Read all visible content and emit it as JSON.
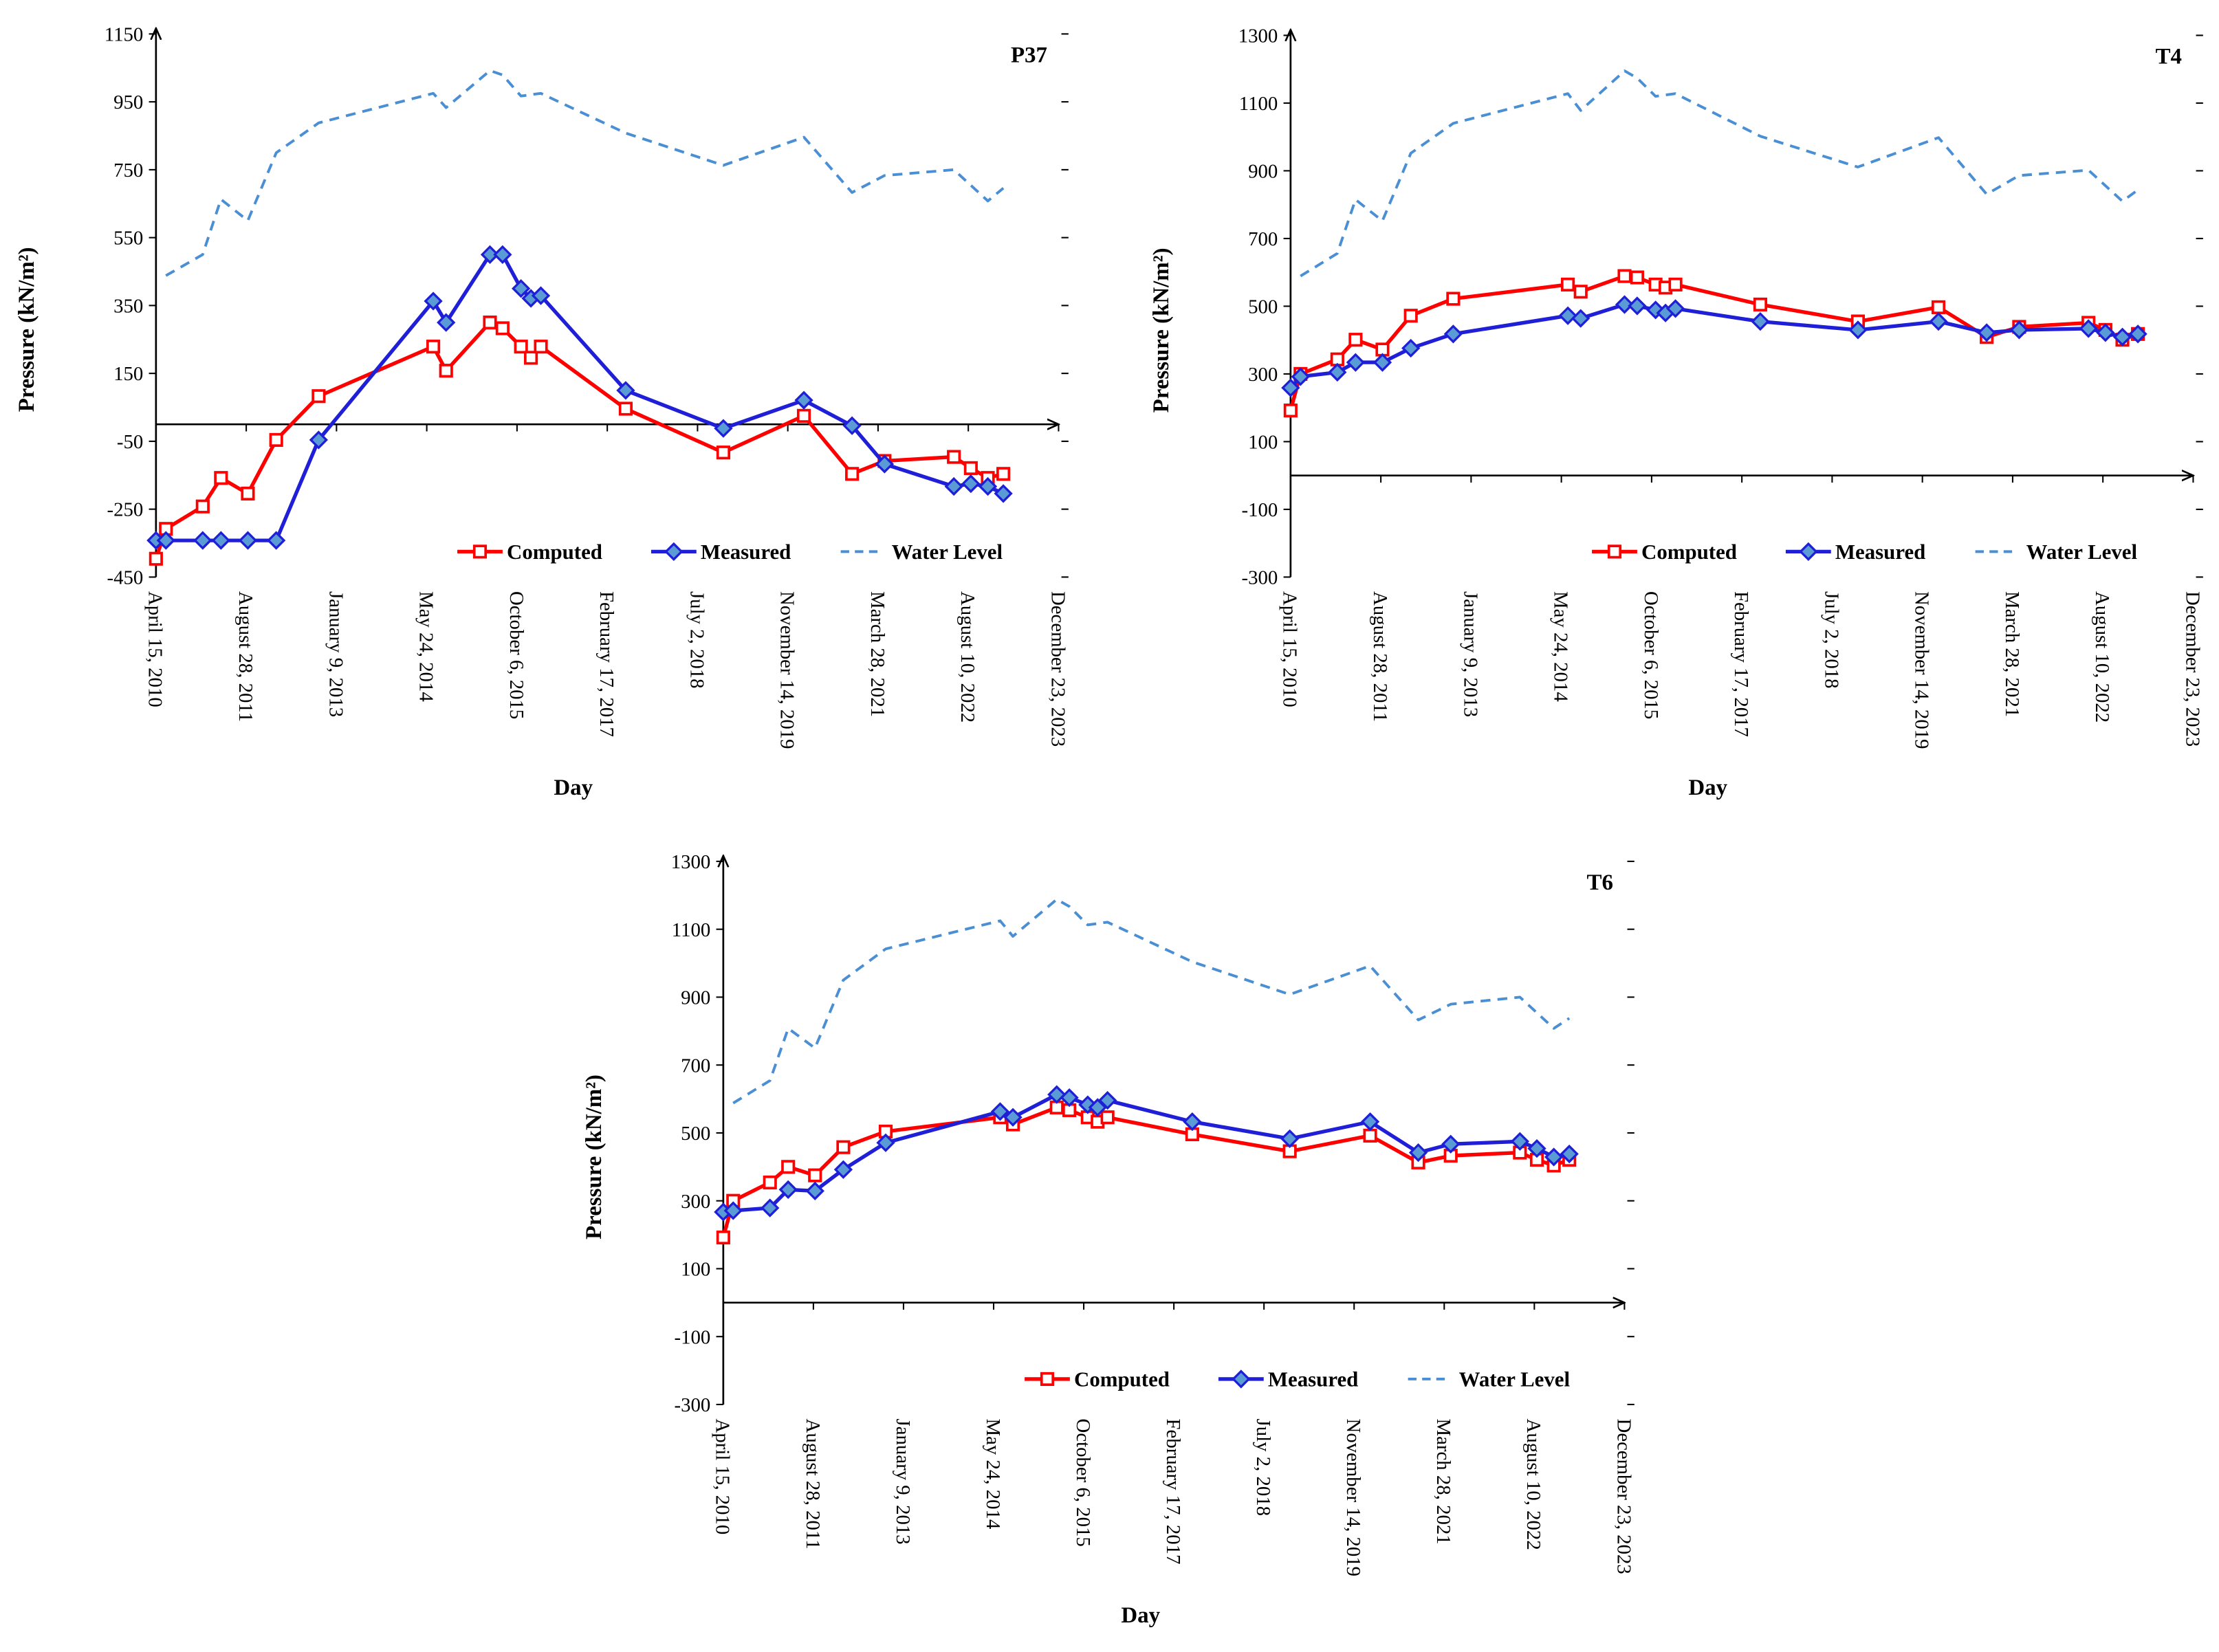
{
  "chart_data": [
    {
      "type": "line",
      "title": "P37",
      "xlabel": "Day",
      "ylabel": "Pressure (kN/m²)",
      "xlim": [
        0,
        5000
      ],
      "ylim": [
        -450,
        1150
      ],
      "yticks": [
        -450,
        -250,
        -50,
        150,
        350,
        550,
        750,
        950,
        1150
      ],
      "xtick_values": [
        0,
        500,
        1000,
        1500,
        2000,
        2500,
        3000,
        3500,
        4000,
        4500,
        5000
      ],
      "xtick_labels": [
        "April 15, 2010",
        "August 28, 2011",
        "January 9, 2013",
        "May 24, 2014",
        "October 6, 2015",
        "February 17, 2017",
        "July 2, 2018",
        "November 14, 2019",
        "March 28, 2021",
        "August 10, 2022",
        "December 23, 2023"
      ],
      "series": [
        {
          "name": "Computed",
          "color": "#ff0000",
          "marker_fill": "#ffffff",
          "x": [
            0,
            55,
            259,
            360,
            509,
            666,
            901,
            1536,
            1607,
            1850,
            1920,
            2022,
            2077,
            2132,
            2602,
            3143,
            3589,
            3856,
            4036,
            4420,
            4514,
            4608,
            4694
          ],
          "y": [
            -396,
            -308,
            -242,
            -158,
            -204,
            -46,
            83,
            229,
            158,
            300,
            283,
            229,
            196,
            229,
            46,
            -83,
            25,
            -146,
            -108,
            -96,
            -129,
            -158,
            -146
          ]
        },
        {
          "name": "Measured",
          "color": "#1f1fd8",
          "marker_fill": "#5b9bd5",
          "x": [
            0,
            55,
            259,
            360,
            509,
            666,
            901,
            1536,
            1607,
            1850,
            1920,
            2022,
            2077,
            2132,
            2602,
            3143,
            3589,
            3856,
            4036,
            4420,
            4514,
            4608,
            4694
          ],
          "y": [
            -342,
            -342,
            -342,
            -342,
            -342,
            -342,
            -46,
            363,
            300,
            500,
            500,
            400,
            371,
            379,
            100,
            -12,
            71,
            -4,
            -117,
            -183,
            -175,
            -183,
            -204
          ]
        },
        {
          "name": "Water Level",
          "color": "#4a8fd4",
          "x": [
            55,
            259,
            360,
            509,
            666,
            901,
            1536,
            1607,
            1850,
            1920,
            2022,
            2132,
            2602,
            3143,
            3589,
            3856,
            4036,
            4420,
            4608,
            4694
          ],
          "y": [
            438,
            500,
            663,
            600,
            800,
            888,
            975,
            933,
            1042,
            1029,
            967,
            975,
            858,
            763,
            846,
            683,
            733,
            750,
            658,
            696
          ]
        }
      ]
    },
    {
      "type": "line",
      "title": "T4",
      "xlabel": "Day",
      "ylabel": "Pressure (kN/m²)",
      "xlim": [
        0,
        5000
      ],
      "ylim": [
        -300,
        1300
      ],
      "yticks": [
        -300,
        -100,
        100,
        300,
        500,
        700,
        900,
        1100,
        1300
      ],
      "xtick_values": [
        0,
        500,
        1000,
        1500,
        2000,
        2500,
        3000,
        3500,
        4000,
        4500,
        5000
      ],
      "xtick_labels": [
        "April 15, 2010",
        "August 28, 2011",
        "January 9, 2013",
        "May 24, 2014",
        "October 6, 2015",
        "February 17, 2017",
        "July 2, 2018",
        "November 14, 2019",
        "March 28, 2021",
        "August 10, 2022",
        "December 23, 2023"
      ],
      "series": [
        {
          "name": "Computed",
          "color": "#ff0000",
          "marker_fill": "#ffffff",
          "x": [
            0,
            55,
            259,
            360,
            509,
            666,
            901,
            1536,
            1607,
            1850,
            1920,
            2022,
            2077,
            2132,
            2602,
            3143,
            3589,
            3856,
            4036,
            4420,
            4514,
            4608,
            4694
          ],
          "y": [
            192,
            300,
            343,
            401,
            372,
            472,
            522,
            564,
            543,
            589,
            585,
            564,
            555,
            564,
            505,
            455,
            497,
            409,
            439,
            451,
            430,
            401,
            418
          ]
        },
        {
          "name": "Measured",
          "color": "#1f1fd8",
          "marker_fill": "#5b9bd5",
          "x": [
            0,
            55,
            259,
            360,
            509,
            666,
            901,
            1536,
            1607,
            1850,
            1920,
            2022,
            2077,
            2132,
            2602,
            3143,
            3589,
            3856,
            4036,
            4420,
            4514,
            4608,
            4694
          ],
          "y": [
            259,
            292,
            305,
            334,
            334,
            376,
            418,
            472,
            464,
            505,
            501,
            489,
            480,
            493,
            455,
            430,
            455,
            422,
            430,
            434,
            422,
            409,
            418
          ]
        },
        {
          "name": "Water Level",
          "color": "#4a8fd4",
          "x": [
            55,
            259,
            360,
            509,
            666,
            901,
            1536,
            1607,
            1850,
            1920,
            2022,
            2132,
            2602,
            3143,
            3589,
            3856,
            4036,
            4420,
            4608,
            4694
          ],
          "y": [
            589,
            656,
            815,
            752,
            952,
            1040,
            1128,
            1078,
            1195,
            1174,
            1120,
            1128,
            1002,
            911,
            998,
            831,
            886,
            902,
            810,
            844
          ]
        }
      ]
    },
    {
      "type": "line",
      "title": "T6",
      "xlabel": "Day",
      "ylabel": "Pressure (kN/m²)",
      "xlim": [
        0,
        5000
      ],
      "ylim": [
        -300,
        1300
      ],
      "yticks": [
        -300,
        -100,
        100,
        300,
        500,
        700,
        900,
        1100,
        1300
      ],
      "xtick_values": [
        0,
        500,
        1000,
        1500,
        2000,
        2500,
        3000,
        3500,
        4000,
        4500,
        5000
      ],
      "xtick_labels": [
        "April 15, 2010",
        "August 28, 2011",
        "January 9, 2013",
        "May 24, 2014",
        "October 6, 2015",
        "February 17, 2017",
        "July 2, 2018",
        "November 14, 2019",
        "March 28, 2021",
        "August 10, 2022",
        "December 23, 2023"
      ],
      "series": [
        {
          "name": "Computed",
          "color": "#ff0000",
          "marker_fill": "#ffffff",
          "x": [
            0,
            55,
            259,
            360,
            509,
            666,
            901,
            1536,
            1607,
            1850,
            1920,
            2022,
            2077,
            2132,
            2602,
            3143,
            3589,
            3856,
            4036,
            4420,
            4514,
            4608,
            4694
          ],
          "y": [
            192,
            300,
            354,
            400,
            375,
            458,
            504,
            546,
            525,
            575,
            567,
            546,
            533,
            546,
            496,
            446,
            492,
            413,
            433,
            442,
            421,
            404,
            421
          ]
        },
        {
          "name": "Measured",
          "color": "#1f1fd8",
          "marker_fill": "#5b9bd5",
          "x": [
            0,
            55,
            259,
            360,
            509,
            666,
            901,
            1536,
            1607,
            1850,
            1920,
            2022,
            2077,
            2132,
            2602,
            3143,
            3589,
            3856,
            4036,
            4420,
            4514,
            4608,
            4694
          ],
          "y": [
            267,
            271,
            279,
            333,
            329,
            392,
            471,
            563,
            546,
            613,
            604,
            583,
            575,
            596,
            533,
            483,
            533,
            442,
            467,
            475,
            454,
            429,
            438
          ]
        },
        {
          "name": "Water Level",
          "color": "#4a8fd4",
          "x": [
            55,
            259,
            360,
            509,
            666,
            901,
            1536,
            1607,
            1850,
            1920,
            2022,
            2132,
            2602,
            3143,
            3589,
            3856,
            4036,
            4420,
            4608,
            4694
          ],
          "y": [
            588,
            654,
            808,
            750,
            950,
            1042,
            1125,
            1079,
            1188,
            1167,
            1113,
            1121,
            1004,
            908,
            992,
            833,
            879,
            900,
            808,
            838
          ]
        }
      ]
    }
  ]
}
